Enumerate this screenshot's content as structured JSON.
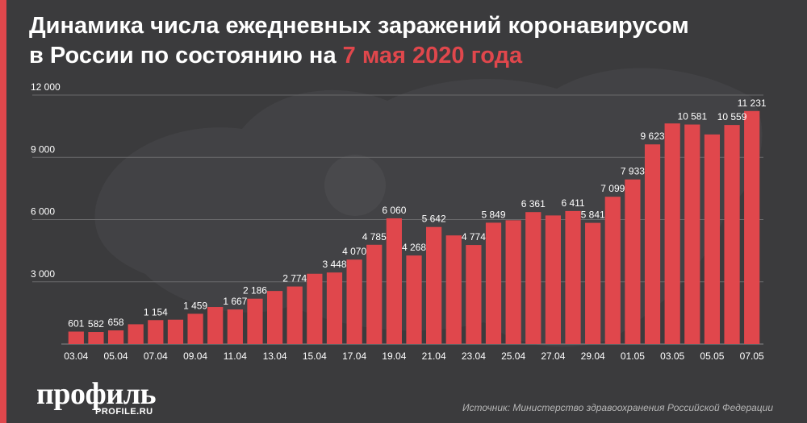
{
  "title": {
    "line1": "Динамика числа ежедневных заражений коронавирусом",
    "line2_prefix": "в России по состоянию на ",
    "line2_highlight": "7 мая 2020 года"
  },
  "logo": {
    "name": "профиль",
    "site": "PROFILE.RU"
  },
  "source": "Источник: Министерство здравоохранения Российской Федерации",
  "colors": {
    "bar": "#e0474c",
    "accent": "#e0474c",
    "background": "#3b3b3d",
    "text": "#ffffff"
  },
  "chart_data": {
    "type": "bar",
    "title": "Динамика числа ежедневных заражений коронавирусом в России по состоянию на 7 мая 2020 года",
    "xlabel": "",
    "ylabel": "",
    "ylim": [
      0,
      12000
    ],
    "yticks": [
      3000,
      6000,
      9000,
      12000
    ],
    "ytick_labels": [
      "3 000",
      "6 000",
      "9 000",
      "12 000"
    ],
    "grid": true,
    "categories": [
      "03.04",
      "04.04",
      "05.04",
      "06.04",
      "07.04",
      "08.04",
      "09.04",
      "10.04",
      "11.04",
      "12.04",
      "13.04",
      "14.04",
      "15.04",
      "16.04",
      "17.04",
      "18.04",
      "19.04",
      "20.04",
      "21.04",
      "22.04",
      "23.04",
      "24.04",
      "25.04",
      "26.04",
      "27.04",
      "28.04",
      "29.04",
      "30.04",
      "01.05",
      "02.05",
      "03.05",
      "04.05",
      "05.05",
      "06.05",
      "07.05"
    ],
    "xtick_labels": [
      "03.04",
      "05.04",
      "07.04",
      "09.04",
      "11.04",
      "13.04",
      "15.04",
      "17.04",
      "19.04",
      "21.04",
      "23.04",
      "25.04",
      "27.04",
      "29.04",
      "01.05",
      "03.05",
      "05.05",
      "07.05"
    ],
    "values": [
      601,
      582,
      658,
      954,
      1154,
      1175,
      1459,
      1786,
      1667,
      2186,
      2558,
      2774,
      3388,
      3448,
      4070,
      4785,
      6060,
      4268,
      5642,
      5236,
      4774,
      5849,
      5966,
      6361,
      6198,
      6411,
      5841,
      7099,
      7933,
      9623,
      10633,
      10581,
      10102,
      10559,
      11231
    ],
    "data_labels": [
      {
        "index": 0,
        "text": "601"
      },
      {
        "index": 1,
        "text": "582"
      },
      {
        "index": 2,
        "text": "658"
      },
      {
        "index": 4,
        "text": "1 154"
      },
      {
        "index": 6,
        "text": "1 459"
      },
      {
        "index": 8,
        "text": "1 667"
      },
      {
        "index": 9,
        "text": "2 186"
      },
      {
        "index": 11,
        "text": "2 774"
      },
      {
        "index": 13,
        "text": "3 448"
      },
      {
        "index": 14,
        "text": "4 070"
      },
      {
        "index": 15,
        "text": "4 785"
      },
      {
        "index": 16,
        "text": "6 060"
      },
      {
        "index": 17,
        "text": "4 268"
      },
      {
        "index": 18,
        "text": "5 642"
      },
      {
        "index": 20,
        "text": "4 774"
      },
      {
        "index": 21,
        "text": "5 849"
      },
      {
        "index": 23,
        "text": "6 361"
      },
      {
        "index": 25,
        "text": "6 411"
      },
      {
        "index": 26,
        "text": "5 841"
      },
      {
        "index": 27,
        "text": "7 099"
      },
      {
        "index": 28,
        "text": "7 933"
      },
      {
        "index": 29,
        "text": "9 623"
      },
      {
        "index": 31,
        "text": "10 581"
      },
      {
        "index": 33,
        "text": "10 559"
      },
      {
        "index": 34,
        "text": "11 231"
      }
    ]
  }
}
